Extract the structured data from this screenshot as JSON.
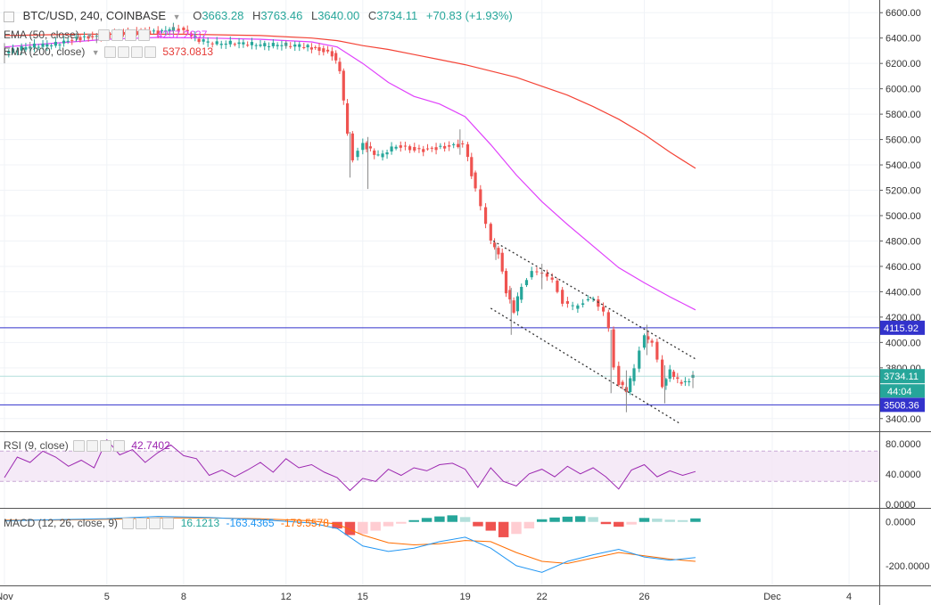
{
  "header": {
    "symbol": "BTC/USD, 240, COINBASE",
    "open_label": "O",
    "open": "3663.28",
    "high_label": "H",
    "high": "3763.46",
    "low_label": "L",
    "low": "3640.00",
    "close_label": "C",
    "close": "3734.11",
    "change": "+70.83 (+1.93%)"
  },
  "indicators": {
    "ema50": {
      "label": "EMA (50, close)",
      "value": "4257.2637",
      "color": "#e040fb"
    },
    "ema200": {
      "label": "EMA (200, close)",
      "value": "5373.0813",
      "color": "#f44336"
    },
    "rsi": {
      "label": "RSI (9, close)",
      "value": "42.7402",
      "color": "#9c27b0"
    },
    "macd": {
      "label": "MACD (12, 26, close, 9)",
      "hist": "16.1213",
      "macd": "-163.4365",
      "signal": "-179.5578",
      "hist_color": "#26a69a",
      "macd_color": "#2196f3",
      "signal_color": "#ff6d00"
    }
  },
  "chart_data": [
    {
      "type": "candlestick",
      "panel": "price",
      "ylim": [
        3300,
        6700
      ],
      "yticks": [
        3400,
        3600,
        3800,
        4000,
        4200,
        4400,
        4600,
        4800,
        5000,
        5200,
        5400,
        5600,
        5800,
        6000,
        6200,
        6400,
        6600
      ],
      "ytick_labels": [
        "3400.00",
        "3600.00",
        "3800.00",
        "4000.00",
        "4200.00",
        "4400.00",
        "4600.00",
        "4800.00",
        "5000.00",
        "5200.00",
        "5400.00",
        "5600.00",
        "5800.00",
        "6000.00",
        "6200.00",
        "6400.00",
        "6600.00"
      ],
      "x_labels": [
        "Nov",
        "5",
        "8",
        "12",
        "15",
        "19",
        "22",
        "26",
        "Dec",
        "4"
      ],
      "x_label_days": [
        1,
        5,
        8,
        12,
        15,
        19,
        22,
        26,
        31,
        34
      ],
      "price_labels": [
        {
          "value": 4115.92,
          "text": "4115.92",
          "color": "#3333cc"
        },
        {
          "value": 3734.11,
          "text": "3734.11",
          "color": "#26a69a"
        },
        {
          "value": 3508.36,
          "text": "3508.36",
          "color": "#3333cc"
        }
      ],
      "countdown": "44:04",
      "horizontal_lines": [
        4115.92,
        3508.36
      ],
      "candles_path": [
        [
          1,
          6290
        ],
        [
          2.0,
          6340
        ],
        [
          3.0,
          6355
        ],
        [
          3.8,
          6395
        ],
        [
          4.6,
          6410
        ],
        [
          5.3,
          6430
        ],
        [
          6.0,
          6440
        ],
        [
          7.0,
          6445
        ],
        [
          7.6,
          6480
        ],
        [
          8.0,
          6465
        ],
        [
          8.6,
          6385
        ],
        [
          9.3,
          6360
        ],
        [
          10.0,
          6365
        ],
        [
          11.0,
          6350
        ],
        [
          12.0,
          6350
        ],
        [
          12.7,
          6340
        ],
        [
          13.3,
          6305
        ],
        [
          13.8,
          6270
        ],
        [
          14.1,
          6150
        ],
        [
          14.4,
          5650
        ],
        [
          14.6,
          5450
        ],
        [
          15.0,
          5560
        ],
        [
          15.6,
          5470
        ],
        [
          16.3,
          5550
        ],
        [
          17.2,
          5510
        ],
        [
          18.2,
          5540
        ],
        [
          18.9,
          5560
        ],
        [
          19.1,
          5450
        ],
        [
          19.4,
          5200
        ],
        [
          19.8,
          4950
        ],
        [
          20.0,
          4800
        ],
        [
          20.3,
          4700
        ],
        [
          20.6,
          4400
        ],
        [
          20.9,
          4250
        ],
        [
          21.2,
          4450
        ],
        [
          21.6,
          4550
        ],
        [
          22.0,
          4560
        ],
        [
          22.4,
          4480
        ],
        [
          22.8,
          4320
        ],
        [
          23.2,
          4280
        ],
        [
          23.6,
          4320
        ],
        [
          24.0,
          4340
        ],
        [
          24.4,
          4250
        ],
        [
          24.6,
          4100
        ],
        [
          24.8,
          3800
        ],
        [
          25.0,
          3680
        ],
        [
          25.3,
          3620
        ],
        [
          25.6,
          3800
        ],
        [
          25.8,
          3950
        ],
        [
          26.0,
          4050
        ],
        [
          26.3,
          4000
        ],
        [
          26.5,
          3850
        ],
        [
          26.7,
          3650
        ],
        [
          27.0,
          3780
        ],
        [
          27.3,
          3700
        ],
        [
          27.6,
          3680
        ],
        [
          27.9,
          3734
        ]
      ],
      "candles_high_low": [
        [
          1,
          6200,
          6360
        ],
        [
          2,
          6310,
          6370
        ],
        [
          4.6,
          6360,
          6440
        ],
        [
          7.6,
          6420,
          6510
        ],
        [
          12,
          6320,
          6380
        ],
        [
          14.5,
          5300,
          5660
        ],
        [
          15.2,
          5210,
          5620
        ],
        [
          18.8,
          5480,
          5680
        ],
        [
          20.2,
          4650,
          4780
        ],
        [
          20.8,
          4060,
          4430
        ],
        [
          22.0,
          4420,
          4620
        ],
        [
          24.7,
          3600,
          4100
        ],
        [
          25.3,
          3450,
          3780
        ],
        [
          26.1,
          3900,
          4140
        ],
        [
          26.8,
          3520,
          3820
        ],
        [
          27.9,
          3640,
          3763
        ]
      ],
      "series": [
        {
          "name": "EMA (50, close)",
          "color": "#e040fb",
          "x": [
            1,
            3,
            5,
            7,
            9,
            11,
            13,
            14,
            15,
            16,
            17,
            18,
            19,
            20,
            21,
            22,
            23,
            24,
            25,
            26,
            27,
            28
          ],
          "y": [
            6330,
            6360,
            6390,
            6405,
            6400,
            6390,
            6370,
            6330,
            6200,
            6050,
            5940,
            5880,
            5780,
            5560,
            5320,
            5110,
            4930,
            4760,
            4590,
            4470,
            4360,
            4257
          ]
        },
        {
          "name": "EMA (200, close)",
          "color": "#f44336",
          "x": [
            1,
            4,
            8,
            11,
            13,
            14,
            15,
            16,
            17,
            18,
            19,
            20,
            21,
            22,
            23,
            24,
            25,
            26,
            27,
            28
          ],
          "y": [
            6420,
            6430,
            6430,
            6420,
            6400,
            6380,
            6340,
            6310,
            6270,
            6230,
            6190,
            6140,
            6090,
            6020,
            5950,
            5860,
            5760,
            5640,
            5500,
            5373
          ]
        }
      ],
      "channel_lines": [
        {
          "x": [
            20.1,
            28
          ],
          "y": [
            4800,
            3870
          ],
          "style": "dotted"
        },
        {
          "x": [
            20.0,
            27.4
          ],
          "y": [
            4270,
            3360
          ],
          "style": "dotted"
        }
      ]
    },
    {
      "type": "line",
      "panel": "rsi",
      "ylim": [
        -5,
        95
      ],
      "yticks": [
        0,
        40,
        80
      ],
      "ytick_labels": [
        "0.0000",
        "40.0000",
        "80.0000"
      ],
      "band": [
        30,
        70
      ],
      "series": [
        {
          "name": "RSI (9, close)",
          "color": "#9c27b0",
          "x": [
            1,
            1.5,
            2,
            2.5,
            3,
            3.5,
            4,
            4.5,
            5,
            5.5,
            6,
            6.5,
            7,
            7.5,
            8,
            8.5,
            9,
            9.5,
            10,
            10.5,
            11,
            11.5,
            12,
            12.5,
            13,
            13.5,
            14,
            14.5,
            15,
            15.5,
            16,
            16.5,
            17,
            17.5,
            18,
            18.5,
            19,
            19.5,
            20,
            20.5,
            21,
            21.5,
            22,
            22.5,
            23,
            23.5,
            24,
            24.5,
            25,
            25.5,
            26,
            26.5,
            27,
            27.5,
            28
          ],
          "y": [
            35,
            62,
            55,
            70,
            62,
            50,
            58,
            48,
            85,
            65,
            72,
            55,
            68,
            78,
            64,
            60,
            38,
            45,
            36,
            45,
            55,
            42,
            60,
            48,
            52,
            42,
            35,
            18,
            34,
            30,
            46,
            38,
            48,
            44,
            52,
            54,
            46,
            22,
            48,
            30,
            24,
            40,
            46,
            36,
            50,
            40,
            48,
            36,
            20,
            45,
            52,
            36,
            44,
            38,
            43
          ]
        }
      ]
    },
    {
      "type": "bar+line",
      "panel": "macd",
      "ylim": [
        -290,
        60
      ],
      "yticks": [
        0,
        -200
      ],
      "ytick_labels": [
        "0.0000",
        "-200.0000"
      ],
      "x_hist": [
        14,
        14.5,
        15,
        15.5,
        16,
        16.5,
        17,
        17.5,
        18,
        18.5,
        19,
        19.5,
        20,
        20.5,
        21,
        21.5,
        22,
        22.5,
        23,
        23.5,
        24,
        24.5,
        25,
        25.5,
        26,
        26.5,
        27,
        27.5,
        28
      ],
      "histogram": [
        -30,
        -60,
        -55,
        -40,
        -20,
        -8,
        8,
        18,
        25,
        30,
        22,
        -20,
        -40,
        -70,
        -55,
        -30,
        12,
        20,
        24,
        26,
        22,
        -10,
        -22,
        -12,
        18,
        15,
        10,
        8,
        16
      ],
      "series": [
        {
          "name": "MACD",
          "color": "#2196f3",
          "x": [
            1,
            3,
            5,
            7,
            9,
            11,
            13,
            14,
            15,
            16,
            17,
            18,
            19,
            20,
            21,
            22,
            23,
            24,
            25,
            26,
            27,
            28
          ],
          "y": [
            5,
            10,
            15,
            25,
            20,
            10,
            -5,
            -30,
            -110,
            -135,
            -120,
            -90,
            -70,
            -120,
            -200,
            -230,
            -180,
            -150,
            -125,
            -160,
            -175,
            -163
          ]
        },
        {
          "name": "Signal",
          "color": "#ff6d00",
          "x": [
            1,
            3,
            5,
            7,
            9,
            11,
            13,
            14,
            15,
            16,
            17,
            18,
            19,
            20,
            21,
            22,
            23,
            24,
            25,
            26,
            27,
            28
          ],
          "y": [
            8,
            8,
            12,
            18,
            18,
            14,
            5,
            -10,
            -60,
            -95,
            -105,
            -100,
            -85,
            -90,
            -140,
            -180,
            -190,
            -165,
            -140,
            -155,
            -170,
            -180
          ]
        }
      ]
    }
  ]
}
